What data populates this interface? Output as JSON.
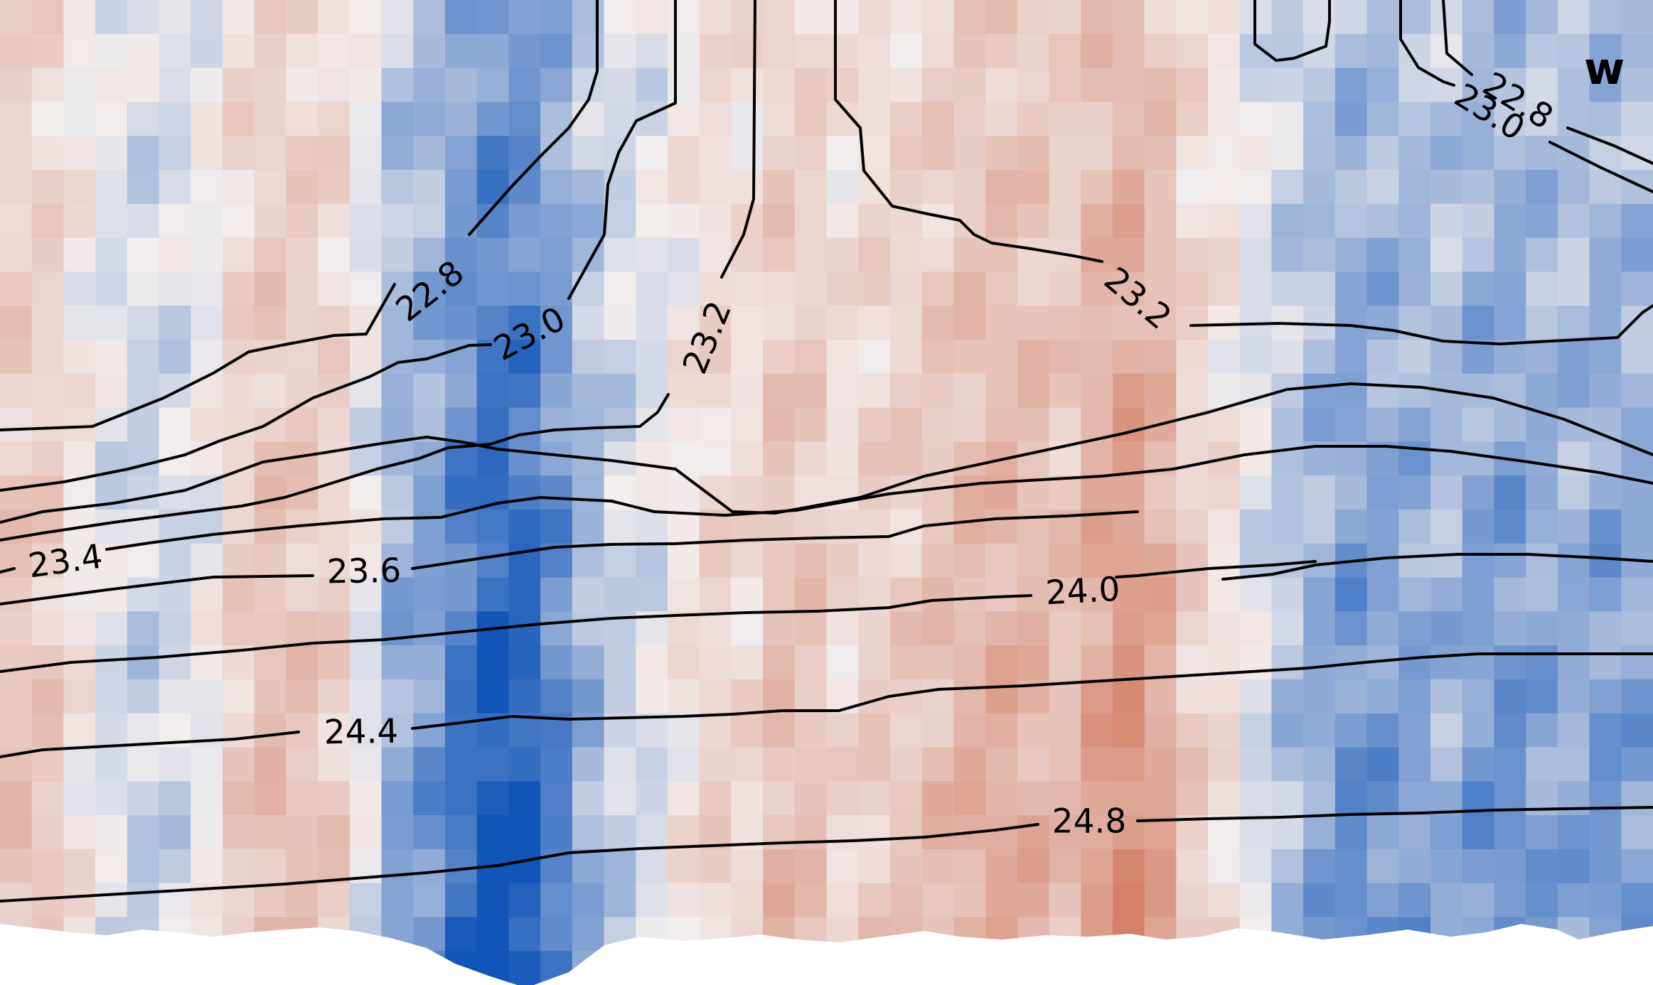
{
  "chart_data": {
    "type": "heatmap",
    "title": "",
    "xlabel": "",
    "ylabel": "",
    "panel_label": "w",
    "colormap": {
      "negative": "#1155b8",
      "neutral": "#f3eeee",
      "positive": "#d4826a"
    },
    "grid": false,
    "legend": "none",
    "columns": 52,
    "rows": 29,
    "column_profile": [
      0.4,
      0.35,
      0.1,
      -0.1,
      -0.2,
      -0.15,
      0.0,
      0.3,
      0.45,
      0.4,
      0.3,
      -0.05,
      -0.45,
      -0.55,
      -0.8,
      -1.0,
      -0.95,
      -0.7,
      -0.4,
      -0.2,
      -0.1,
      0.1,
      0.25,
      0.2,
      0.45,
      0.4,
      0.2,
      0.3,
      0.35,
      0.45,
      0.55,
      0.6,
      0.55,
      0.45,
      0.7,
      0.85,
      0.65,
      0.3,
      0.15,
      -0.1,
      -0.3,
      -0.45,
      -0.6,
      -0.55,
      -0.5,
      -0.4,
      -0.55,
      -0.6,
      -0.5,
      -0.45,
      -0.55,
      -0.5
    ],
    "contour_levels": [
      {
        "label": "22.8",
        "value": 22.8
      },
      {
        "label": "23.0",
        "value": 23.0
      },
      {
        "label": "23.2",
        "value": 23.2
      },
      {
        "label": "23.4",
        "value": 23.4
      },
      {
        "label": "23.6",
        "value": 23.6
      },
      {
        "label": "24.0",
        "value": 24.0
      },
      {
        "label": "24.4",
        "value": 24.4
      },
      {
        "label": "24.8",
        "value": 24.8
      }
    ],
    "contour_labels": [
      {
        "id": "a",
        "text": "22.8"
      },
      {
        "id": "b",
        "text": "23.0"
      },
      {
        "id": "c",
        "text": "23.2"
      },
      {
        "id": "d",
        "text": "23.2"
      },
      {
        "id": "e",
        "text": "22.8"
      },
      {
        "id": "f",
        "text": "23.0"
      },
      {
        "id": "g",
        "text": "23.4"
      },
      {
        "id": "h",
        "text": "23.6"
      },
      {
        "id": "i",
        "text": "24.0"
      },
      {
        "id": "j",
        "text": "24.4"
      },
      {
        "id": "k",
        "text": "24.8"
      }
    ]
  }
}
